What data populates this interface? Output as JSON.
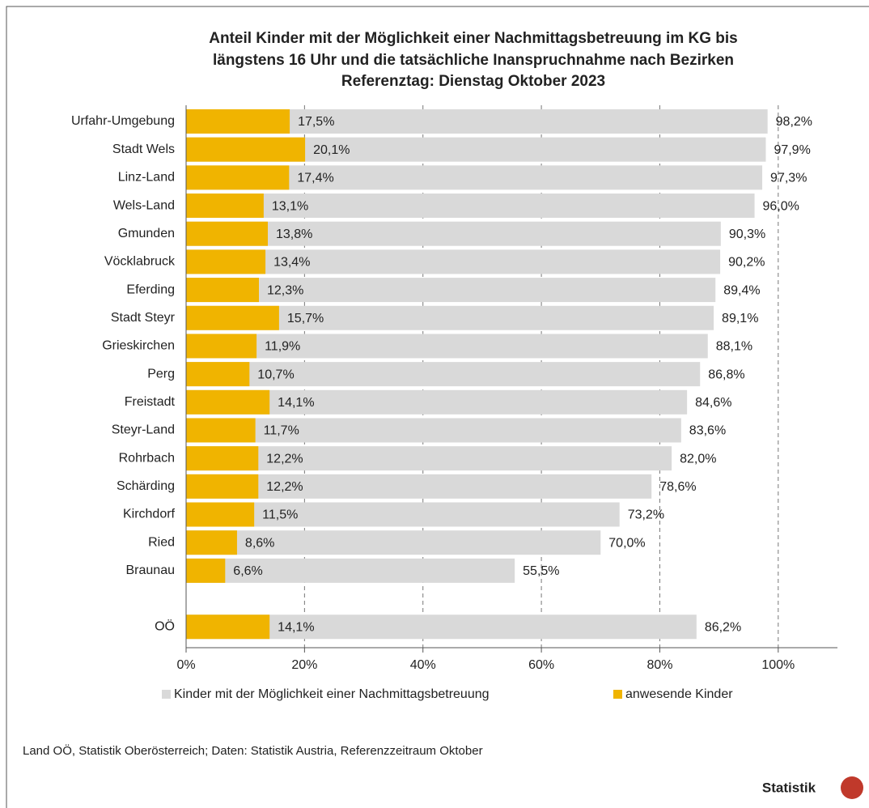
{
  "chart_data": {
    "type": "overlapping-bar",
    "title": [
      "Anteil Kinder mit der Möglichkeit einer Nachmittagsbetreuung im KG bis",
      "längstens 16 Uhr und die tatsächliche Inanspruchnahme nach Bezirken",
      "Referenztag: Dienstag Oktober 2023"
    ],
    "categories": [
      "Urfahr-Umgebung",
      "Stadt Wels",
      "Linz-Land",
      "Wels-Land",
      "Gmunden",
      "Vöcklabruck",
      "Eferding",
      "Stadt Steyr",
      "Grieskirchen",
      "Perg",
      "Freistadt",
      "Steyr-Land",
      "Rohrbach",
      "Schärding",
      "Kirchdorf",
      "Ried",
      "Braunau",
      null,
      "OÖ"
    ],
    "series": [
      {
        "name": "Kinder mit der Möglichkeit einer Nachmittagsbetreuung",
        "color": "#d9d9d9",
        "values": [
          98.2,
          97.9,
          97.3,
          96.0,
          90.3,
          90.2,
          89.4,
          89.1,
          88.1,
          86.8,
          84.6,
          83.6,
          82.0,
          78.6,
          73.2,
          70.0,
          55.5,
          null,
          86.2
        ],
        "value_labels": [
          "98,2%",
          "97,9%",
          "97,3%",
          "96,0%",
          "90,3%",
          "90,2%",
          "89,4%",
          "89,1%",
          "88,1%",
          "86,8%",
          "84,6%",
          "83,6%",
          "82,0%",
          "78,6%",
          "73,2%",
          "70,0%",
          "55,5%",
          null,
          "86,2%"
        ]
      },
      {
        "name": "anwesende Kinder",
        "color": "#f0b400",
        "values": [
          17.5,
          20.1,
          17.4,
          13.1,
          13.8,
          13.4,
          12.3,
          15.7,
          11.9,
          10.7,
          14.1,
          11.7,
          12.2,
          12.2,
          11.5,
          8.6,
          6.6,
          null,
          14.1
        ],
        "value_labels": [
          "17,5%",
          "20,1%",
          "17,4%",
          "13,1%",
          "13,8%",
          "13,4%",
          "12,3%",
          "15,7%",
          "11,9%",
          "10,7%",
          "14,1%",
          "11,7%",
          "12,2%",
          "12,2%",
          "11,5%",
          "8,6%",
          "6,6%",
          null,
          "14,1%"
        ]
      }
    ],
    "xlim": [
      0,
      110
    ],
    "xticks": [
      {
        "value": 0,
        "label": "0%"
      },
      {
        "value": 20,
        "label": "20%"
      },
      {
        "value": 40,
        "label": "40%"
      },
      {
        "value": 60,
        "label": "60%"
      },
      {
        "value": 80,
        "label": "80%"
      },
      {
        "value": 100,
        "label": "100%"
      }
    ],
    "grid": true,
    "legend": "bottom",
    "source": "Land OÖ, Statistik Oberösterreich; Daten: Statistik Austria, Referenzzeitraum Oktober",
    "logo": "Statistik"
  }
}
